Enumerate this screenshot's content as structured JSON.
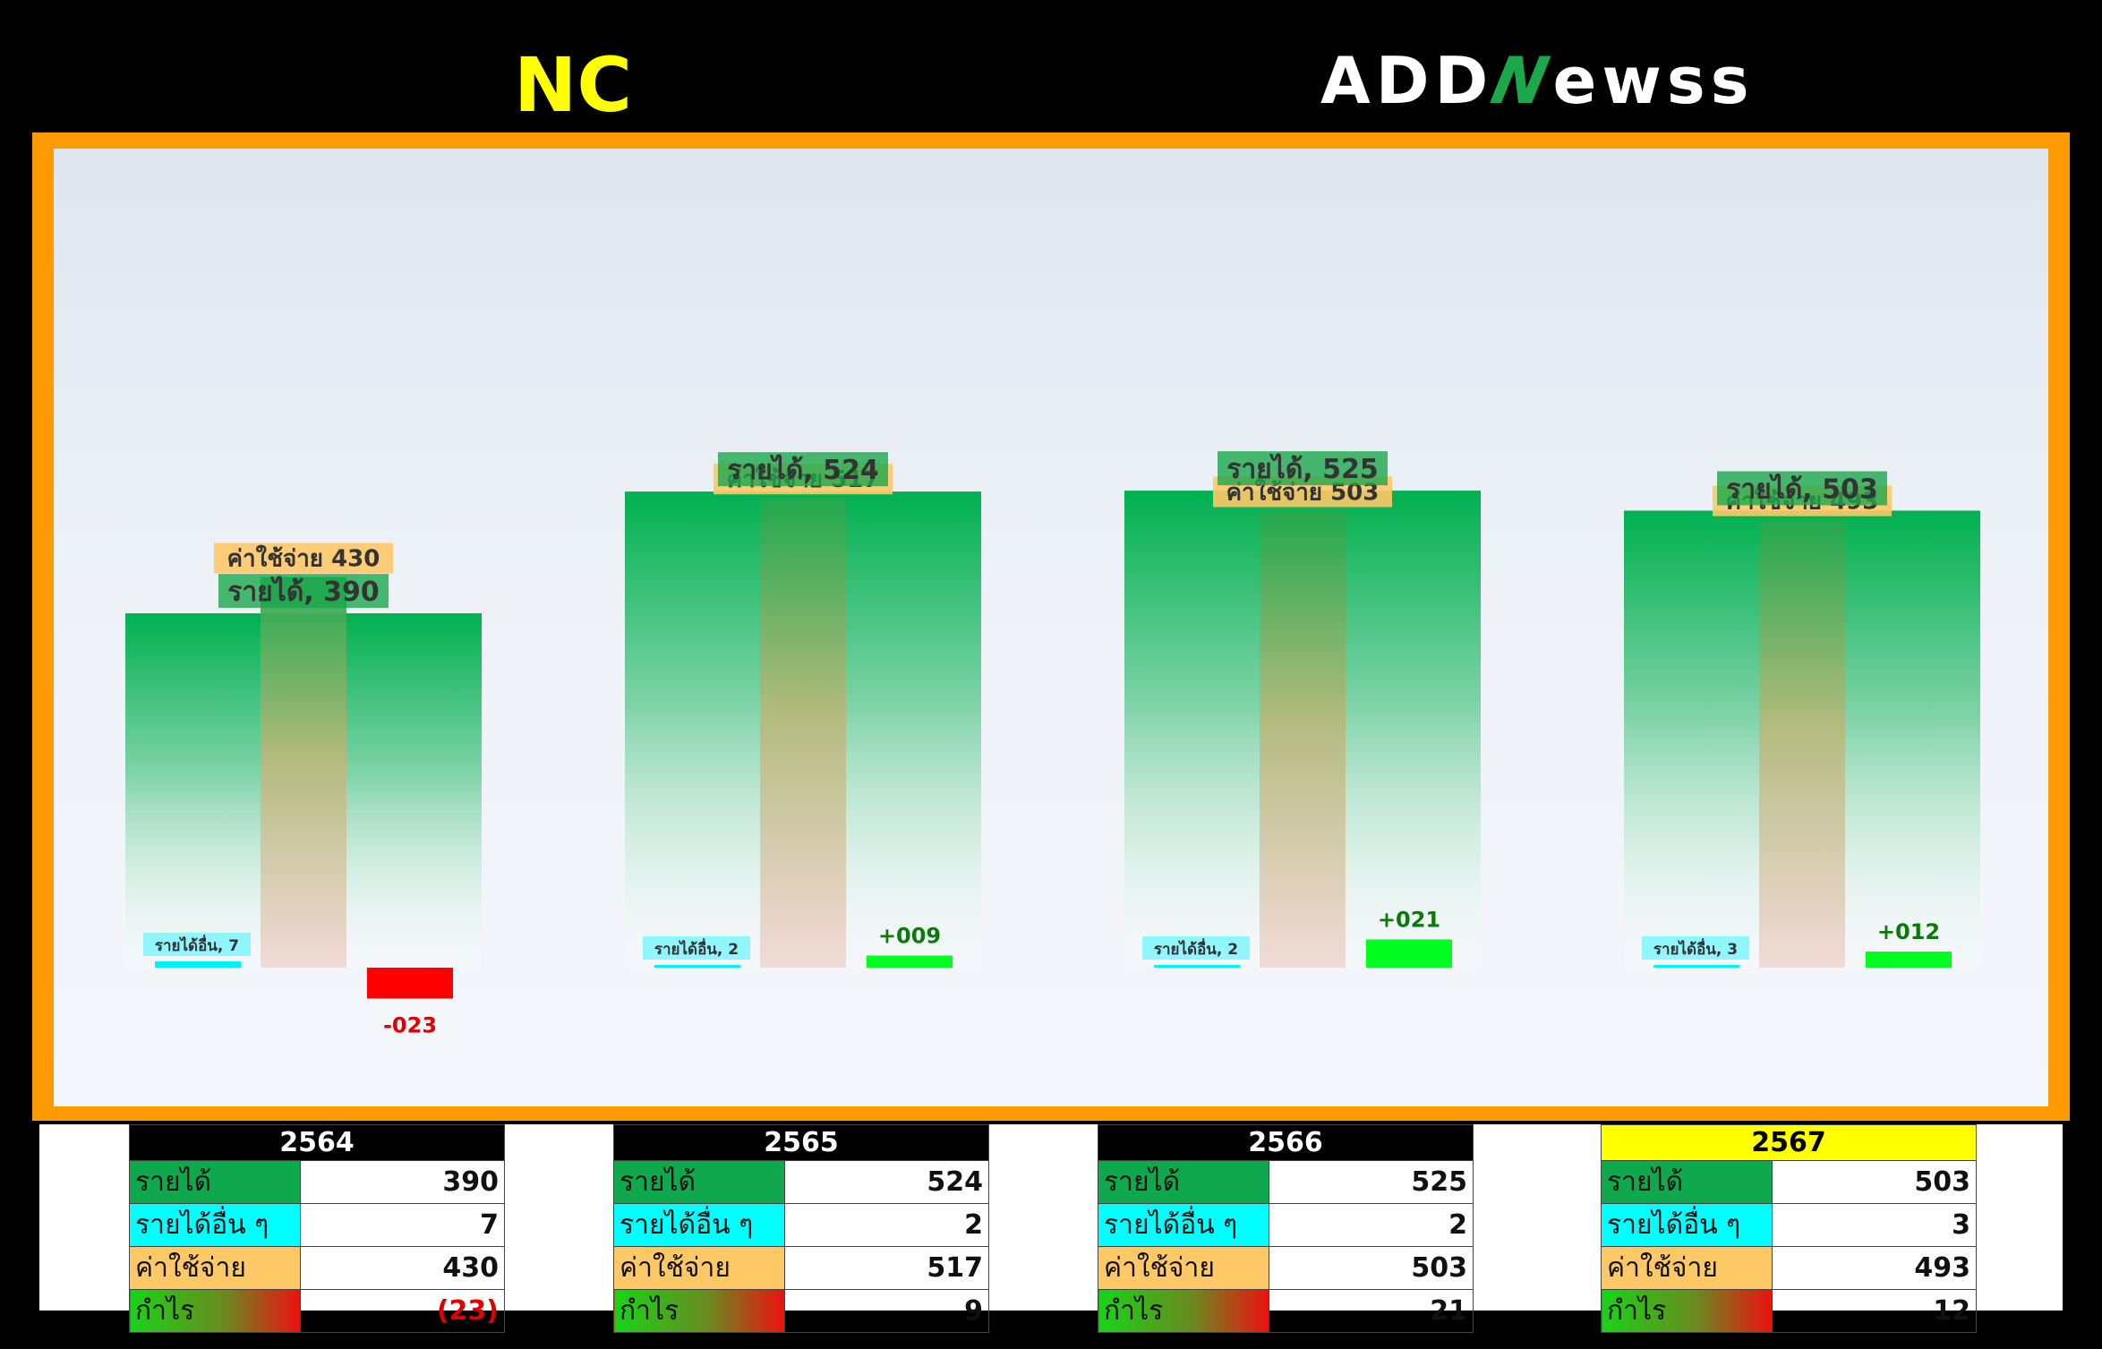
{
  "header": {
    "company": "NC",
    "company_color": "#ffff00",
    "logo_text_left": "ADD",
    "logo_text_mid": "N",
    "logo_text_right": "ewss"
  },
  "colors": {
    "frame": "#ff9a00",
    "revenue": "#0db050",
    "expense": "#f4a050",
    "other_income": "#00f0ff",
    "profit_positive": "#00ff20",
    "profit_negative": "#ff0000",
    "highlight_year": "#ffff00"
  },
  "chart_data": {
    "type": "bar",
    "categories": [
      "2564",
      "2565",
      "2566",
      "2567"
    ],
    "series": [
      {
        "name": "รายได้",
        "values": [
          390,
          524,
          525,
          503
        ]
      },
      {
        "name": "ค่าใช้จ่าย",
        "values": [
          430,
          517,
          503,
          493
        ]
      },
      {
        "name": "รายได้อื่น",
        "values": [
          7,
          2,
          2,
          3
        ]
      },
      {
        "name": "กำไร",
        "values": [
          -23,
          9,
          21,
          12
        ]
      }
    ],
    "labels": {
      "revenue": [
        "รายได้, 390",
        "รายได้, 524",
        "รายได้, 525",
        "รายได้, 503"
      ],
      "expense": [
        "ค่าใช้จ่าย 430",
        "ค่าใช้จ่าย 517",
        "ค่าใช้จ่าย 503",
        "ค่าใช้จ่าย 493"
      ],
      "other": [
        "รายได้อื่น, 7",
        "รายได้อื่น, 2",
        "รายได้อื่น, 2",
        "รายได้อื่น, 3"
      ],
      "profit": [
        "-023",
        "+009",
        "+021",
        "+012"
      ]
    }
  },
  "tables": [
    {
      "year": "2564",
      "highlight": false,
      "rows": [
        {
          "label": "รายได้",
          "value": "390",
          "negative": false
        },
        {
          "label": "รายได้อื่น ๆ",
          "value": "7",
          "negative": false
        },
        {
          "label": "ค่าใช้จ่าย",
          "value": "430",
          "negative": false
        },
        {
          "label": "กำไร",
          "value": "(23)",
          "negative": true
        }
      ]
    },
    {
      "year": "2565",
      "highlight": false,
      "rows": [
        {
          "label": "รายได้",
          "value": "524",
          "negative": false
        },
        {
          "label": "รายได้อื่น ๆ",
          "value": "2",
          "negative": false
        },
        {
          "label": "ค่าใช้จ่าย",
          "value": "517",
          "negative": false
        },
        {
          "label": "กำไร",
          "value": "9",
          "negative": false
        }
      ]
    },
    {
      "year": "2566",
      "highlight": false,
      "rows": [
        {
          "label": "รายได้",
          "value": "525",
          "negative": false
        },
        {
          "label": "รายได้อื่น ๆ",
          "value": "2",
          "negative": false
        },
        {
          "label": "ค่าใช้จ่าย",
          "value": "503",
          "negative": false
        },
        {
          "label": "กำไร",
          "value": "21",
          "negative": false
        }
      ]
    },
    {
      "year": "2567",
      "highlight": true,
      "rows": [
        {
          "label": "รายได้",
          "value": "503",
          "negative": false
        },
        {
          "label": "รายได้อื่น ๆ",
          "value": "3",
          "negative": false
        },
        {
          "label": "ค่าใช้จ่าย",
          "value": "493",
          "negative": false
        },
        {
          "label": "กำไร",
          "value": "12",
          "negative": false
        }
      ]
    }
  ]
}
